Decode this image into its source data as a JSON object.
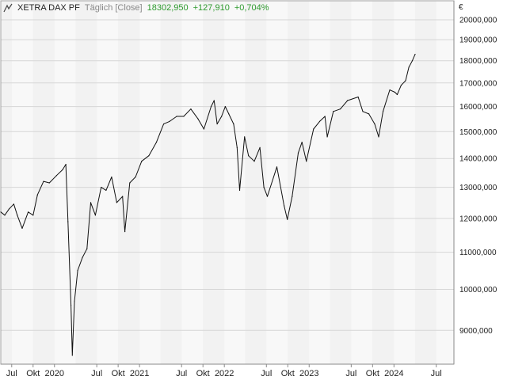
{
  "header": {
    "title": "XETRA DAX PF",
    "interval": "Täglich [Close]",
    "last": "18302,950",
    "change": "+127,910",
    "change_pct": "+0,704%",
    "up_color": "#2e9a2e"
  },
  "chart_data": {
    "type": "line",
    "currency": "€",
    "y_scale": "log",
    "ylim": [
      8250,
      21000
    ],
    "y_ticks": [
      9000,
      10000,
      11000,
      12000,
      13000,
      14000,
      15000,
      16000,
      17000,
      18000,
      19000,
      20000
    ],
    "y_tick_labels": [
      "9000,000",
      "10000,000",
      "11000,000",
      "12000,000",
      "13000,000",
      "14000,000",
      "15000,000",
      "16000,000",
      "17000,000",
      "18000,000",
      "19000,000",
      "20000,000"
    ],
    "xlim": [
      "2019-05-15",
      "2024-09-15"
    ],
    "x_ticks": [
      "2019-07-01",
      "2019-10-01",
      "2020-01-01",
      "2020-07-01",
      "2020-10-01",
      "2021-01-01",
      "2021-07-01",
      "2021-10-01",
      "2022-01-01",
      "2022-07-01",
      "2022-10-01",
      "2023-01-01",
      "2023-07-01",
      "2023-10-01",
      "2024-01-01",
      "2024-07-01"
    ],
    "x_tick_labels": [
      "Jul",
      "Okt",
      "2020",
      "Jul",
      "Okt",
      "2021",
      "Jul",
      "Okt",
      "2022",
      "Jul",
      "Okt",
      "2023",
      "Jul",
      "Okt",
      "2024",
      "Jul"
    ],
    "grid": true,
    "series": [
      {
        "x": [
          "2019-05-15",
          "2019-06-01",
          "2019-06-20",
          "2019-07-10",
          "2019-07-25",
          "2019-08-15",
          "2019-09-10",
          "2019-10-01",
          "2019-10-20",
          "2019-11-15",
          "2019-12-10",
          "2020-01-10",
          "2020-02-05",
          "2020-02-19",
          "2020-02-28",
          "2020-03-12",
          "2020-03-18",
          "2020-03-27",
          "2020-04-10",
          "2020-04-30",
          "2020-05-20",
          "2020-06-05",
          "2020-06-25",
          "2020-07-20",
          "2020-08-10",
          "2020-09-03",
          "2020-09-25",
          "2020-10-20",
          "2020-10-30",
          "2020-11-20",
          "2020-12-15",
          "2021-01-10",
          "2021-02-10",
          "2021-03-15",
          "2021-04-15",
          "2021-05-10",
          "2021-06-10",
          "2021-07-10",
          "2021-08-10",
          "2021-09-10",
          "2021-10-05",
          "2021-11-05",
          "2021-11-18",
          "2021-12-01",
          "2021-12-20",
          "2022-01-05",
          "2022-01-20",
          "2022-02-10",
          "2022-02-25",
          "2022-03-08",
          "2022-03-29",
          "2022-04-15",
          "2022-05-10",
          "2022-06-03",
          "2022-06-20",
          "2022-07-05",
          "2022-08-15",
          "2022-09-15",
          "2022-09-29",
          "2022-10-20",
          "2022-11-15",
          "2022-12-01",
          "2022-12-20",
          "2023-01-20",
          "2023-02-15",
          "2023-03-10",
          "2023-03-20",
          "2023-04-15",
          "2023-05-15",
          "2023-06-15",
          "2023-07-31",
          "2023-08-20",
          "2023-09-15",
          "2023-10-10",
          "2023-10-27",
          "2023-11-15",
          "2023-12-14",
          "2024-01-05",
          "2024-01-15",
          "2024-02-01",
          "2024-02-20",
          "2024-03-05",
          "2024-03-20",
          "2024-04-01"
        ],
        "y": [
          12200,
          12100,
          12300,
          12450,
          12100,
          11700,
          12200,
          12100,
          12750,
          13200,
          13150,
          13400,
          13600,
          13790,
          11900,
          9600,
          8440,
          9700,
          10500,
          10850,
          11100,
          12500,
          12100,
          13000,
          12900,
          13350,
          12500,
          12700,
          11600,
          13150,
          13350,
          13900,
          14100,
          14600,
          15300,
          15400,
          15600,
          15600,
          15900,
          15500,
          15100,
          16000,
          16250,
          15300,
          15600,
          16000,
          15700,
          15300,
          14400,
          12900,
          14800,
          14100,
          13900,
          14400,
          13000,
          12700,
          13700,
          12400,
          11970,
          12700,
          14200,
          14600,
          13900,
          15100,
          15400,
          15600,
          14800,
          15800,
          15900,
          16250,
          16400,
          15800,
          15700,
          15300,
          14800,
          15800,
          16700,
          16600,
          16500,
          16900,
          17100,
          17700,
          18000,
          18300
        ]
      }
    ]
  }
}
